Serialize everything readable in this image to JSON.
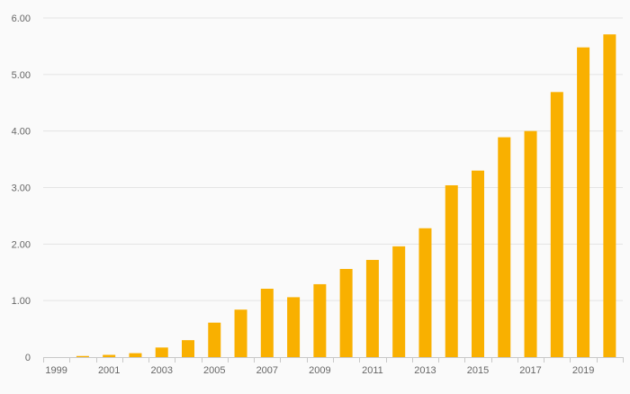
{
  "colors": {
    "bar": "#F9B000",
    "grid": "#e4e4e4",
    "axis": "#c8c8c8",
    "tick_text": "#666666",
    "background": "#fafafa"
  },
  "chart_data": {
    "type": "bar",
    "title": "",
    "xlabel": "",
    "ylabel": "",
    "ylim": [
      0,
      6
    ],
    "grid": true,
    "legend": "none",
    "y_ticks": [
      0,
      1,
      2,
      3,
      4,
      5,
      6
    ],
    "y_tick_labels": [
      "0",
      "1.00",
      "2.00",
      "3.00",
      "4.00",
      "5.00",
      "6.00"
    ],
    "x_tick_labels": [
      "1999",
      "2001",
      "2003",
      "2005",
      "2007",
      "2009",
      "2011",
      "2013",
      "2015",
      "2017",
      "2019"
    ],
    "categories": [
      "1999",
      "2000",
      "2001",
      "2002",
      "2003",
      "2004",
      "2005",
      "2006",
      "2007",
      "2008",
      "2009",
      "2010",
      "2011",
      "2012",
      "2013",
      "2014",
      "2015",
      "2016",
      "2017",
      "2018",
      "2019",
      "2020"
    ],
    "values": [
      0.0,
      0.02,
      0.04,
      0.07,
      0.17,
      0.3,
      0.61,
      0.84,
      1.21,
      1.06,
      1.29,
      1.56,
      1.72,
      1.96,
      2.28,
      3.04,
      3.3,
      3.89,
      4.0,
      4.69,
      5.48,
      5.71
    ]
  }
}
